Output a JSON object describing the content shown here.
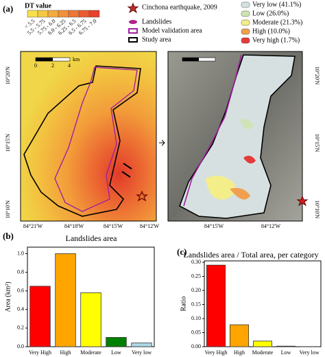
{
  "panel_a": {
    "label": "(a)",
    "dt_legend": {
      "title": "DT value",
      "classes": [
        {
          "label": "< 5.5",
          "color": "#f7e04a"
        },
        {
          "label": "5.5 - 5.75",
          "color": "#f5c842"
        },
        {
          "label": "5.75 - 6.0",
          "color": "#f4ab3c"
        },
        {
          "label": "6.0 - 6.25",
          "color": "#f29138"
        },
        {
          "label": "6.25 - 6.5",
          "color": "#ef7634"
        },
        {
          "label": "6.5 - 6.75",
          "color": "#ec5a30"
        },
        {
          "label": "6.75 - 7.0",
          "color": "#e8402c"
        }
      ]
    },
    "map_legend": [
      "Cinchona earthquake, 2009",
      "Landslides",
      "Model validation area",
      "Study area"
    ],
    "susceptibility_legend": [
      {
        "label": "Very low (41.1%)",
        "color": "#d6e0e0"
      },
      {
        "label": "Low (26.0%)",
        "color": "#cfe3b5"
      },
      {
        "label": "Moderate (21.3%)",
        "color": "#f4ee8a"
      },
      {
        "label": "High (10.0%)",
        "color": "#f0a050"
      },
      {
        "label": "Very high (1.7%)",
        "color": "#e43a3a"
      }
    ],
    "scale_bar": [
      "0",
      "2",
      "4",
      "km"
    ],
    "left_lat": [
      "10°20'N",
      "10°15'N",
      "10°10'N"
    ],
    "left_lon": [
      "84°21'W",
      "84°18'W",
      "84°15'W",
      "84°12'W"
    ],
    "right_lat": [
      "10°20'N",
      "10°15'N",
      "10°10'N"
    ],
    "right_lon": [
      "84°15'W",
      "84°12'W"
    ]
  },
  "chart_data": [
    {
      "type": "bar",
      "panel": "(b)",
      "title": "Landslides area",
      "y_label": "Area (km²)",
      "categories": [
        "Very High",
        "High",
        "Moderate",
        "Low",
        "Very low"
      ],
      "values": [
        0.65,
        1.0,
        0.58,
        0.1,
        0.04
      ],
      "colors": [
        "#ff0000",
        "#ffa500",
        "#ffff00",
        "#008000",
        "#add8e6"
      ],
      "ylim": [
        0,
        1.07
      ],
      "yticks": [
        {
          "value": 0,
          "label": "0.0"
        },
        {
          "value": 0.2,
          "label": "0.2"
        },
        {
          "value": 0.4,
          "label": "0.4"
        },
        {
          "value": 0.6,
          "label": "0.6"
        },
        {
          "value": 0.8,
          "label": "0.8"
        },
        {
          "value": 1.0,
          "label": "1.0"
        }
      ]
    },
    {
      "type": "bar",
      "panel": "(c)",
      "title": "Landslides area / Total area, per category",
      "y_label": "Ratio",
      "categories": [
        "Very High",
        "High",
        "Moderate",
        "Low",
        "Very low"
      ],
      "values": [
        0.29,
        0.078,
        0.02,
        0.002,
        0.0005
      ],
      "colors": [
        "#ff0000",
        "#ffa500",
        "#ffff00",
        "#008000",
        "#add8e6"
      ],
      "ylim": [
        0,
        0.305
      ],
      "yticks": [
        {
          "value": 0,
          "label": "0.00"
        },
        {
          "value": 0.05,
          "label": "0.05"
        },
        {
          "value": 0.1,
          "label": "0.10"
        },
        {
          "value": 0.15,
          "label": "0.15"
        },
        {
          "value": 0.2,
          "label": "0.20"
        },
        {
          "value": 0.25,
          "label": "0.25"
        },
        {
          "value": 0.3,
          "label": "0.30"
        }
      ]
    }
  ]
}
